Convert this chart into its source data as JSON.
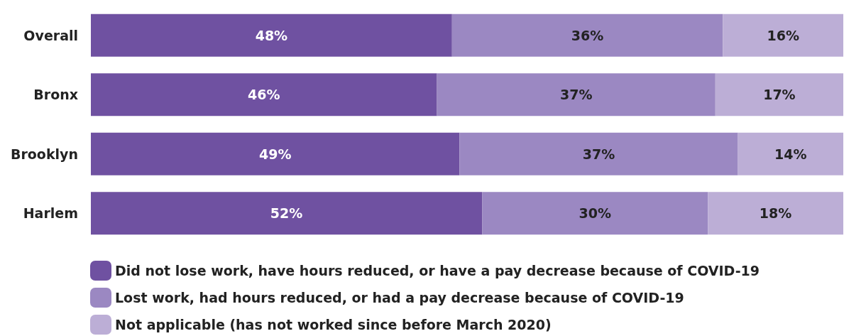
{
  "chart_data": {
    "type": "bar",
    "orientation": "horizontal",
    "stacked": true,
    "legend": "bottom",
    "categories": [
      "Overall",
      "Bronx",
      "Brooklyn",
      "Harlem"
    ],
    "series": [
      {
        "name": "Did not lose work, have hours reduced, or have a pay decrease because of COVID-19",
        "color": "#6f51a1",
        "values": [
          48,
          46,
          49,
          52
        ],
        "value_labels": [
          "48%",
          "46%",
          "49%",
          "52%"
        ]
      },
      {
        "name": "Lost work, had hours reduced, or had a pay decrease because of COVID-19",
        "color": "#9b88c2",
        "values": [
          36,
          37,
          37,
          30
        ],
        "value_labels": [
          "36%",
          "37%",
          "37%",
          "30%"
        ]
      },
      {
        "name": "Not applicable (has not worked since before March 2020)",
        "color": "#bcaed6",
        "values": [
          16,
          17,
          14,
          18
        ],
        "value_labels": [
          "16%",
          "17%",
          "14%",
          "18%"
        ]
      }
    ]
  }
}
